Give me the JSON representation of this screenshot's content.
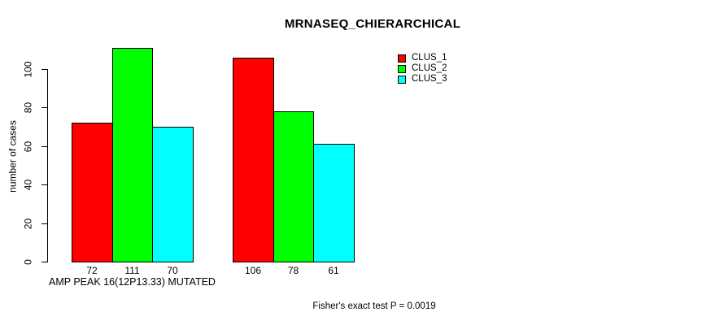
{
  "chart_data": {
    "type": "bar",
    "title": "MRNASEQ_CHIERARCHICAL",
    "ylabel": "number of cases",
    "group_label": "AMP PEAK 16(12P13.33) MUTATED",
    "footnote": "Fisher's exact test P = 0.0019",
    "yticks": [
      0,
      20,
      40,
      60,
      80,
      100
    ],
    "ylim": [
      0,
      111
    ],
    "grid": false,
    "bar_value_labels_shown": true,
    "series": [
      {
        "name": "CLUS_1",
        "color": "#ff0000",
        "values": [
          72,
          106
        ]
      },
      {
        "name": "CLUS_2",
        "color": "#00ff00",
        "values": [
          111,
          78
        ]
      },
      {
        "name": "CLUS_3",
        "color": "#00ffff",
        "values": [
          70,
          61
        ]
      }
    ],
    "groups": [
      {
        "label": "AMP PEAK 16(12P13.33) MUTATED",
        "values": [
          72,
          111,
          70
        ]
      },
      {
        "label": "",
        "values": [
          106,
          78,
          61
        ]
      }
    ],
    "legend": {
      "position": "top-right",
      "entries": [
        "CLUS_1",
        "CLUS_2",
        "CLUS_3"
      ]
    }
  }
}
